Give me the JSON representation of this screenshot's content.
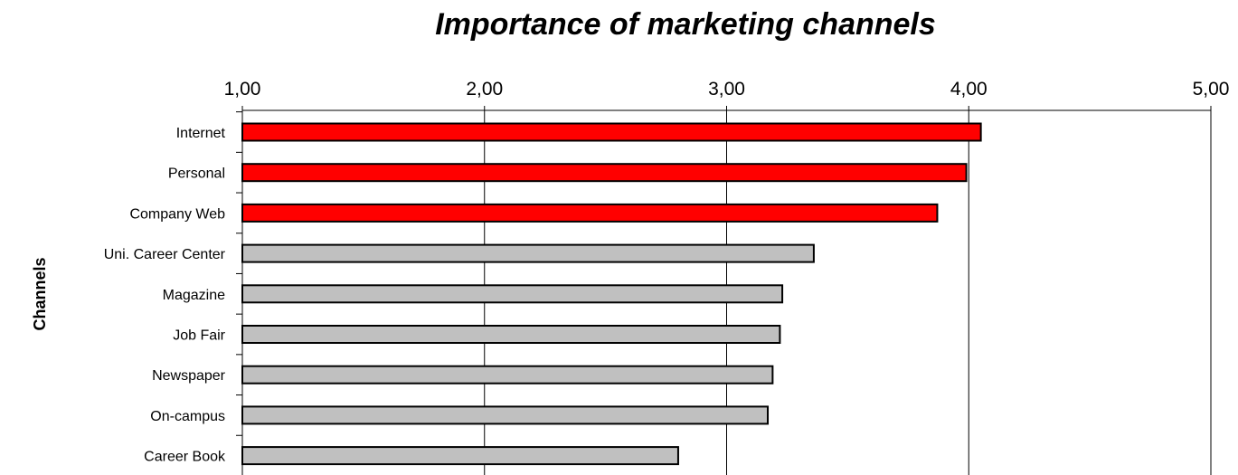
{
  "chart_data": {
    "type": "bar",
    "orientation": "horizontal",
    "title": "Importance of marketing channels",
    "ylabel": "Channels",
    "xlabel": "",
    "categories": [
      "Internet",
      "Personal",
      "Company Web",
      "Uni. Career Center",
      "Magazine",
      "Job Fair",
      "Newspaper",
      "On-campus",
      "Career Book"
    ],
    "values": [
      4.05,
      3.99,
      3.87,
      3.36,
      3.23,
      3.22,
      3.19,
      3.17,
      2.8
    ],
    "highlight_count": 3,
    "xlim": [
      1,
      5
    ],
    "x_ticks": [
      "1,00",
      "2,00",
      "3,00",
      "4,00",
      "5,00"
    ],
    "x_axis_position": "top",
    "grid": "vertical",
    "colors": {
      "highlight": "#ff0000",
      "normal": "#c0c0c0",
      "outline": "#000000",
      "grid": "#000000"
    }
  }
}
